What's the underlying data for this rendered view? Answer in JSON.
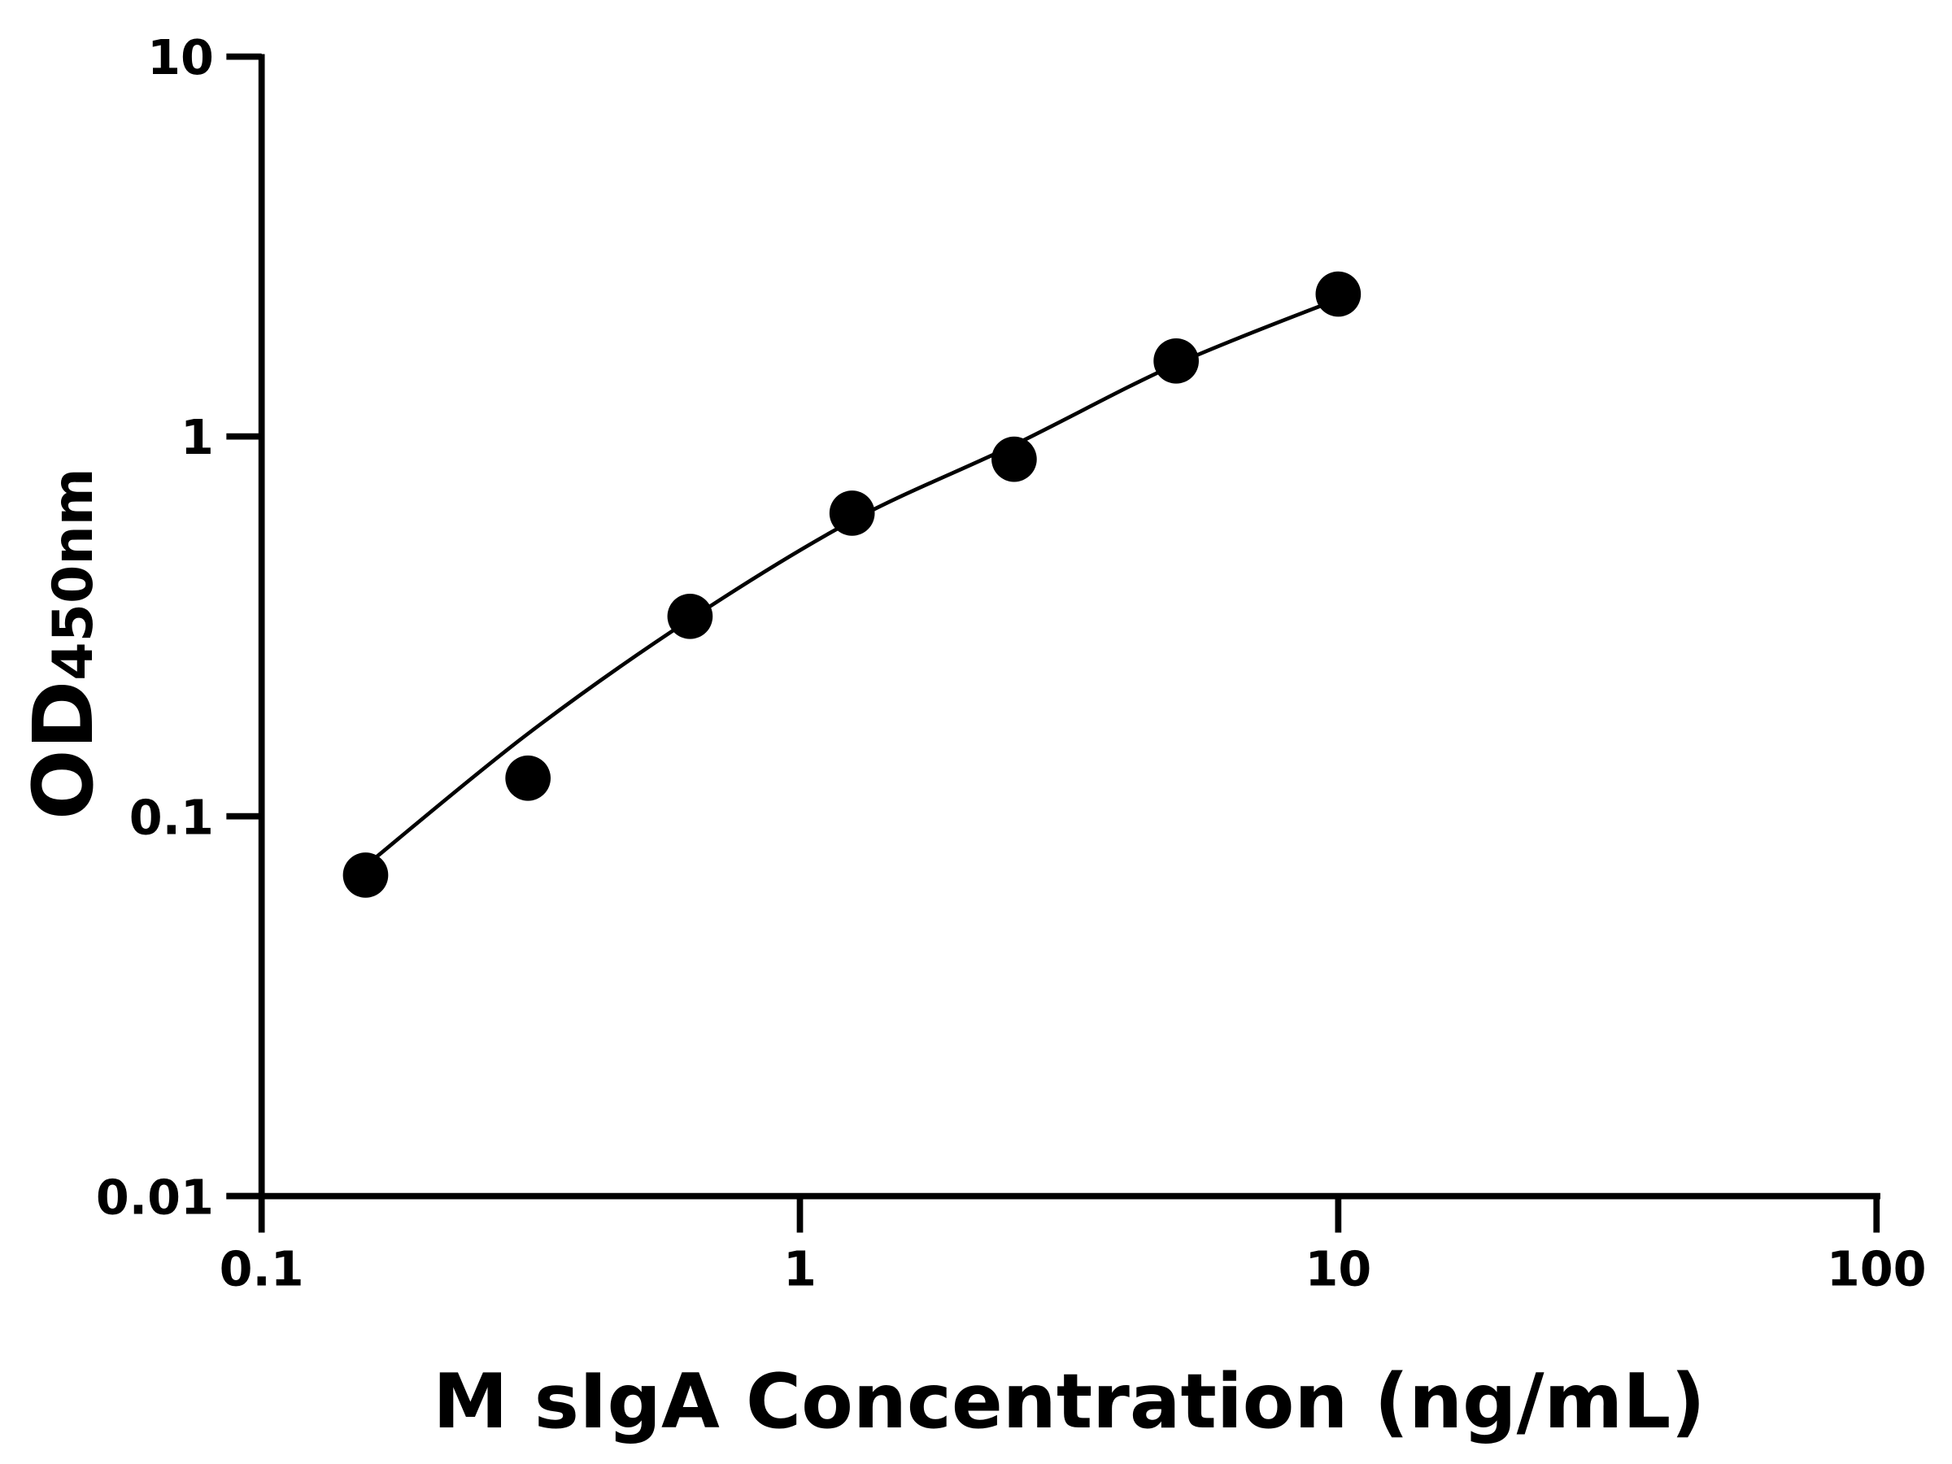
{
  "chart_data": {
    "type": "scatter",
    "title": "",
    "xlabel": "M sIgA Concentration (ng/mL)",
    "ylabel": "OD",
    "ylabel_subscript": "450nm",
    "xscale": "log",
    "yscale": "log",
    "xlim": [
      0.1,
      100
    ],
    "ylim": [
      0.01,
      10
    ],
    "x_ticks": [
      0.1,
      1,
      10,
      100
    ],
    "x_tick_labels": [
      "0.1",
      "1",
      "10",
      "100"
    ],
    "y_ticks": [
      0.01,
      0.1,
      1,
      10
    ],
    "y_tick_labels": [
      "0.01",
      "0.1",
      "1",
      "10"
    ],
    "grid": false,
    "legend": "none",
    "series": [
      {
        "x": [
          0.156,
          0.3125,
          0.625,
          1.25,
          2.5,
          5,
          10
        ],
        "y": [
          0.07,
          0.126,
          0.336,
          0.628,
          0.871,
          1.58,
          2.37
        ],
        "marker": "circle",
        "color": "#000000"
      }
    ],
    "fit_curve": {
      "x": [
        0.156,
        0.3125,
        0.625,
        1.25,
        2.5,
        5,
        10
      ],
      "y": [
        0.074,
        0.165,
        0.33,
        0.6,
        0.95,
        1.55,
        2.3
      ],
      "color": "#000000"
    }
  }
}
